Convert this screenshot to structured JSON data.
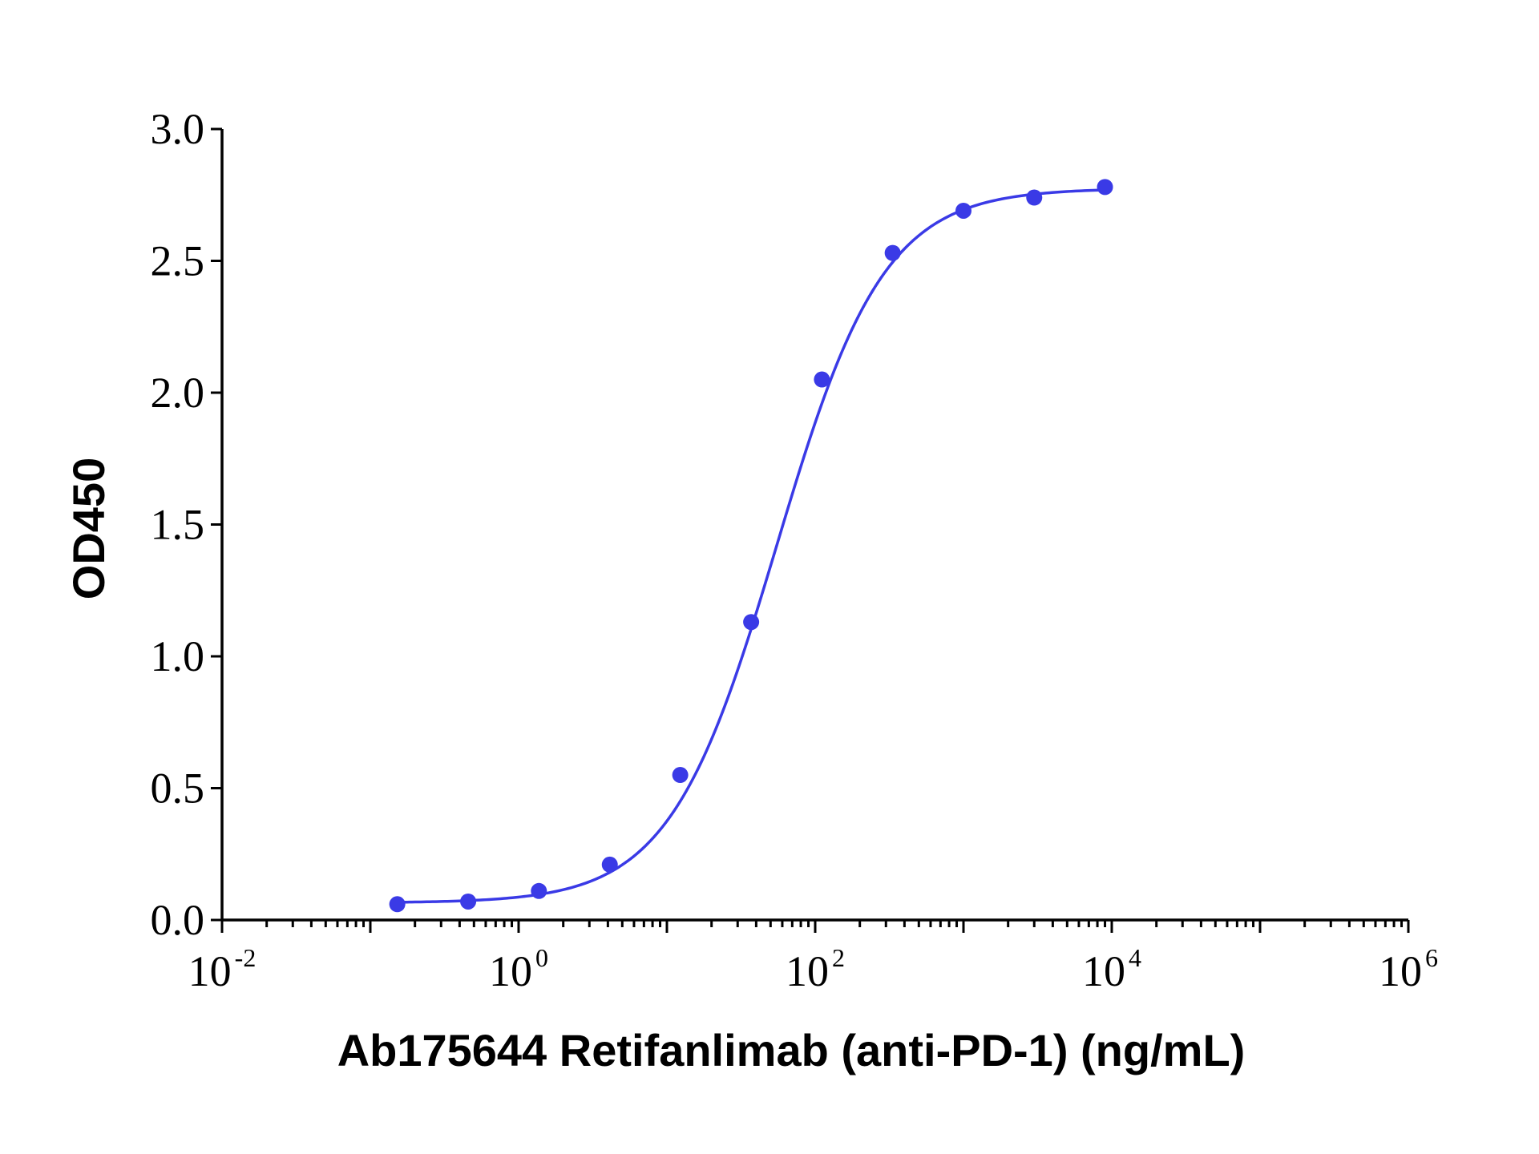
{
  "chart_data": {
    "type": "scatter",
    "xlabel": "Ab175644 Retifanlimab (anti-PD-1) (ng/mL)",
    "ylabel": "OD450",
    "xscale": "log",
    "xlim": [
      0.01,
      1000000
    ],
    "ylim": [
      0,
      3.0
    ],
    "grid": false,
    "x_ticks": [
      {
        "value": 0.01,
        "base": "10",
        "exp": "-2"
      },
      {
        "value": 1,
        "base": "10",
        "exp": "0"
      },
      {
        "value": 100,
        "base": "10",
        "exp": "2"
      },
      {
        "value": 10000,
        "base": "10",
        "exp": "4"
      },
      {
        "value": 1000000,
        "base": "10",
        "exp": "6"
      }
    ],
    "y_ticks": [
      "0.0",
      "0.5",
      "1.0",
      "1.5",
      "2.0",
      "2.5",
      "3.0"
    ],
    "series": [
      {
        "color": "#3a3ae6",
        "points": [
          {
            "x": 0.152,
            "y": 0.06
          },
          {
            "x": 0.457,
            "y": 0.07
          },
          {
            "x": 1.37,
            "y": 0.11
          },
          {
            "x": 4.12,
            "y": 0.21
          },
          {
            "x": 12.3,
            "y": 0.55
          },
          {
            "x": 37.0,
            "y": 1.13
          },
          {
            "x": 111,
            "y": 2.05
          },
          {
            "x": 333,
            "y": 2.53
          },
          {
            "x": 1000,
            "y": 2.69
          },
          {
            "x": 3000,
            "y": 2.74
          },
          {
            "x": 9000,
            "y": 2.78
          }
        ],
        "fit": {
          "type": "4PL",
          "bottom": 0.065,
          "top": 2.775,
          "ec50": 55,
          "hill": 1.2,
          "x_range": [
            0.152,
            9000
          ]
        }
      }
    ]
  }
}
